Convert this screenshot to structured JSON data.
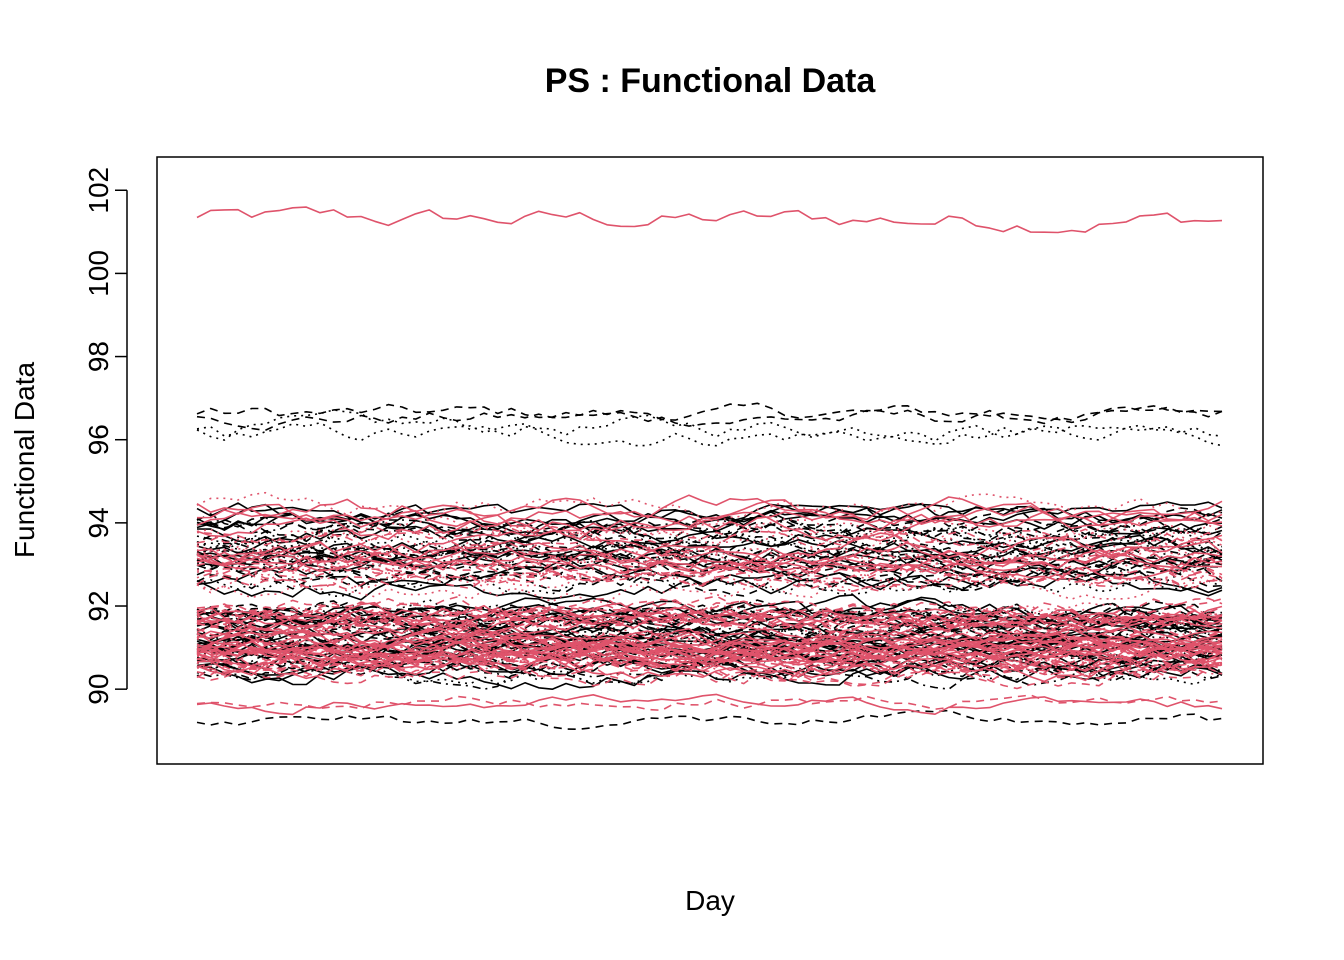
{
  "chart_data": {
    "type": "line",
    "title": "PS : Functional Data",
    "xlabel": "Day",
    "ylabel": "Functional Data",
    "ylim": [
      88.2,
      102.8
    ],
    "y_ticks": [
      90,
      92,
      94,
      96,
      98,
      100,
      102
    ],
    "y_tick_labels": [
      "90",
      "92",
      "94",
      "96",
      "98",
      "100",
      "102"
    ],
    "x_ticks_shown": false,
    "grid": false,
    "legend": "none",
    "series_colors": [
      "#000000",
      "#DF536B"
    ],
    "n_points": 76,
    "series_groups": [
      {
        "color": "#DF536B",
        "style": "solid",
        "count": 1,
        "mean_level": 101.4,
        "range": [
          100.4,
          102.2
        ]
      },
      {
        "color": "#000000",
        "style": "dashed",
        "count": 2,
        "mean_level": 96.7,
        "range": [
          96.2,
          97.4
        ]
      },
      {
        "color": "#000000",
        "style": "dotted",
        "count": 2,
        "mean_level": 96.3,
        "range": [
          95.7,
          97.2
        ]
      },
      {
        "color": "#000000",
        "style": "mixed",
        "count": 30,
        "mean_level": 93.4,
        "range": [
          92.0,
          94.8
        ]
      },
      {
        "color": "#DF536B",
        "style": "mixed",
        "count": 25,
        "mean_level": 93.5,
        "range": [
          92.0,
          95.0
        ]
      },
      {
        "color": "#000000",
        "style": "mixed",
        "count": 40,
        "mean_level": 91.2,
        "range": [
          90.0,
          92.3
        ]
      },
      {
        "color": "#DF536B",
        "style": "mixed",
        "count": 50,
        "mean_level": 91.1,
        "range": [
          90.0,
          92.3
        ]
      },
      {
        "color": "#000000",
        "style": "dashed",
        "count": 1,
        "mean_level": 89.3,
        "range": [
          88.8,
          89.8
        ]
      },
      {
        "color": "#DF536B",
        "style": "solid",
        "count": 1,
        "mean_level": 89.5,
        "range": [
          89.0,
          90.0
        ]
      },
      {
        "color": "#DF536B",
        "style": "dashed",
        "count": 1,
        "mean_level": 89.6,
        "range": [
          89.0,
          90.0
        ]
      }
    ]
  }
}
